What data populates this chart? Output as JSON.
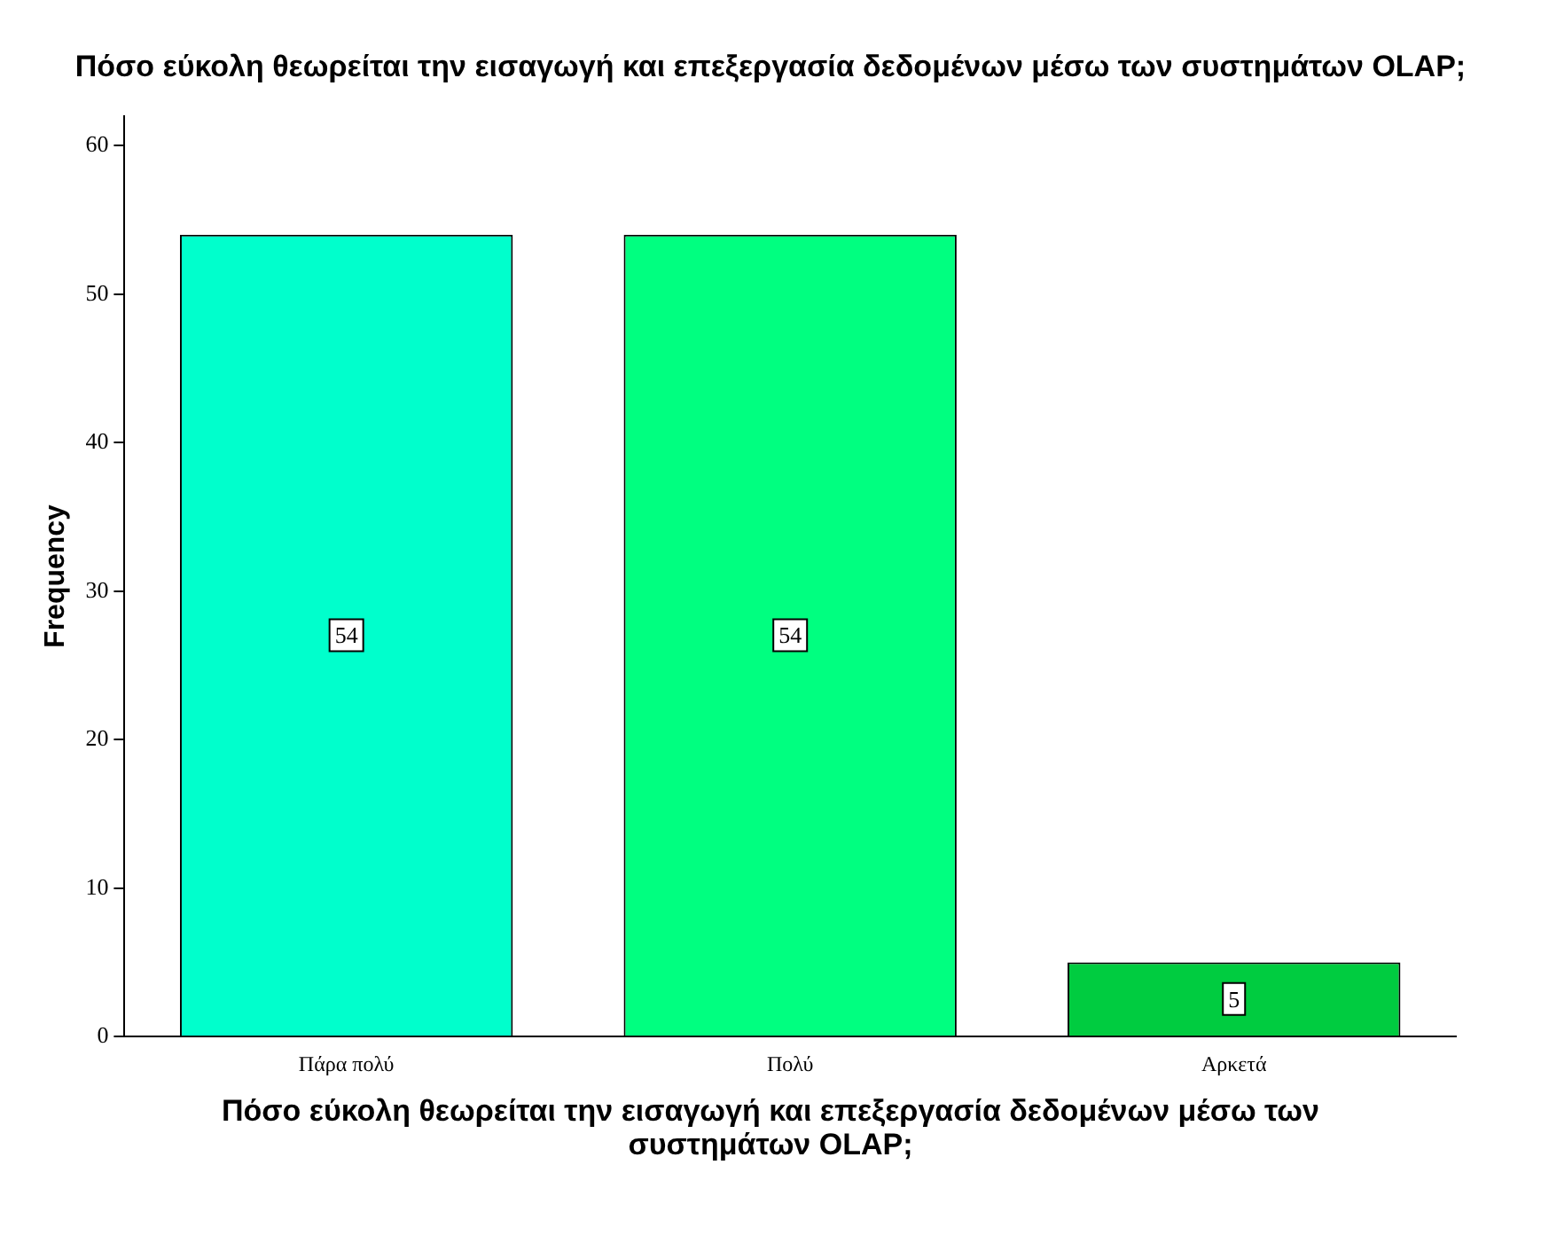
{
  "chart_data": {
    "type": "bar",
    "title": "Πόσο εύκολη θεωρείται την εισαγωγή και επεξεργασία δεδομένων μέσω των συστημάτων OLAP;",
    "xlabel": "Πόσο εύκολη θεωρείται την εισαγωγή και επεξεργασία δεδομένων μέσω των συστημάτων OLAP;",
    "ylabel": "Frequency",
    "categories": [
      "Πάρα πολύ",
      "Πολύ",
      "Αρκετά"
    ],
    "values": [
      54,
      54,
      5
    ],
    "colors": [
      "#00ffcc",
      "#00ff80",
      "#00cc40"
    ],
    "ylim": [
      0,
      62
    ],
    "yticks": [
      0,
      10,
      20,
      30,
      40,
      50,
      60
    ],
    "grid": false,
    "data_labels": true
  }
}
